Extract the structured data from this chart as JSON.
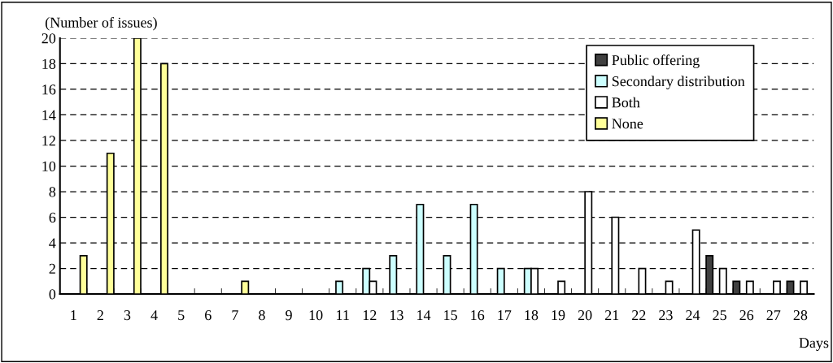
{
  "chart_data": {
    "type": "bar",
    "ylabel": "(Number of issues)",
    "xlabel": "Days",
    "categories": [
      "1",
      "2",
      "3",
      "4",
      "5",
      "6",
      "7",
      "8",
      "9",
      "10",
      "11",
      "12",
      "13",
      "14",
      "15",
      "16",
      "17",
      "18",
      "19",
      "20",
      "21",
      "22",
      "23",
      "24",
      "25",
      "26",
      "27",
      "28"
    ],
    "series": [
      {
        "name": "Public offering",
        "color": "#404040",
        "values": [
          null,
          null,
          null,
          null,
          null,
          null,
          null,
          null,
          null,
          null,
          null,
          null,
          null,
          null,
          null,
          null,
          null,
          null,
          null,
          null,
          null,
          null,
          null,
          null,
          3,
          1,
          null,
          1
        ]
      },
      {
        "name": "Secondary distribution",
        "color": "#ccffff",
        "values": [
          null,
          null,
          null,
          null,
          null,
          null,
          null,
          null,
          null,
          null,
          1,
          2,
          3,
          7,
          3,
          7,
          2,
          2,
          null,
          null,
          null,
          null,
          null,
          null,
          null,
          null,
          null,
          null
        ]
      },
      {
        "name": "Both",
        "color": "#ffffff",
        "values": [
          null,
          null,
          null,
          null,
          null,
          null,
          null,
          null,
          null,
          null,
          null,
          1,
          null,
          null,
          null,
          null,
          null,
          2,
          1,
          8,
          6,
          2,
          1,
          5,
          2,
          1,
          1,
          1
        ]
      },
      {
        "name": "None",
        "color": "#ffff99",
        "values": [
          3,
          11,
          20,
          18,
          null,
          null,
          1,
          null,
          null,
          null,
          null,
          null,
          null,
          null,
          null,
          null,
          null,
          null,
          null,
          null,
          null,
          null,
          null,
          null,
          null,
          null,
          null,
          null
        ]
      }
    ],
    "ylim": [
      0,
      20
    ],
    "yticks": [
      0,
      2,
      4,
      6,
      8,
      10,
      12,
      14,
      16,
      18,
      20
    ],
    "grid": "y",
    "legend": "top right"
  }
}
